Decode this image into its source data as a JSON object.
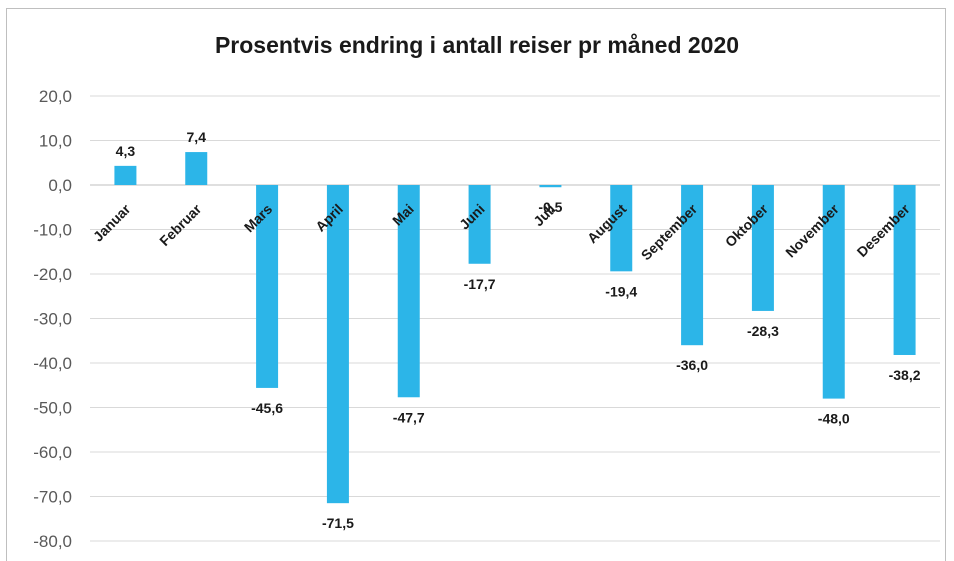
{
  "chart_data": {
    "type": "bar",
    "title": "Prosentvis endring i antall reiser pr måned 2020",
    "xlabel": "",
    "ylabel": "",
    "categories": [
      "Januar",
      "Februar",
      "Mars",
      "April",
      "Mai",
      "Juni",
      "Juli",
      "August",
      "September",
      "Oktober",
      "November",
      "Desember"
    ],
    "values": [
      4.3,
      7.4,
      -45.6,
      -71.5,
      -47.7,
      -17.7,
      -0.5,
      -19.4,
      -36.0,
      -28.3,
      -48.0,
      -38.2
    ],
    "data_labels": [
      "4,3",
      "7,4",
      "-45,6",
      "-71,5",
      "-47,7",
      "-17,7",
      "-0,5",
      "-19,4",
      "-36,0",
      "-28,3",
      "-48,0",
      "-38,2"
    ],
    "ylim": [
      -80,
      20
    ],
    "y_ticks": [
      20,
      10,
      0,
      -10,
      -20,
      -30,
      -40,
      -50,
      -60,
      -70,
      -80
    ],
    "y_tick_labels": [
      "20,0",
      "10,0",
      "0,0",
      "-10,0",
      "-20,0",
      "-30,0",
      "-40,0",
      "-50,0",
      "-60,0",
      "-70,0",
      "-80,0"
    ],
    "grid": true,
    "legend": "none",
    "bar_color": "#2cb5e8",
    "grid_color": "#d9d9d9",
    "zero_line_color": "#bfbfbf"
  }
}
